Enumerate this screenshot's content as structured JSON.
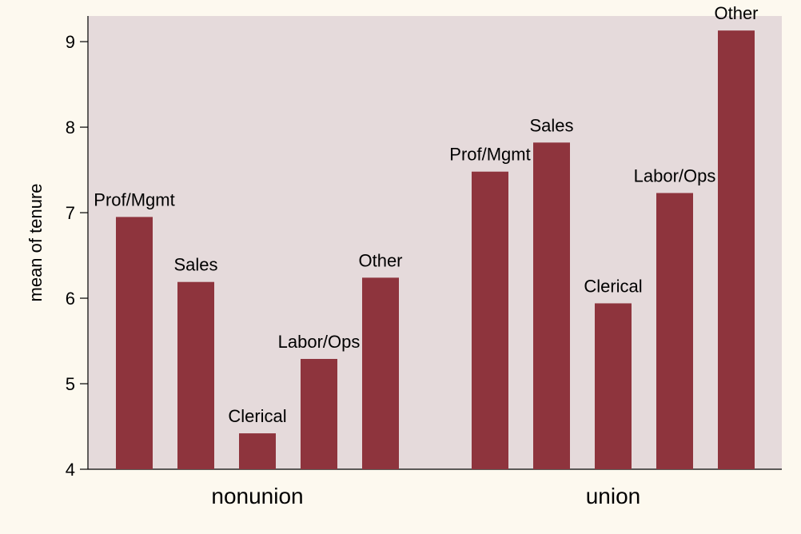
{
  "chart_data": {
    "type": "bar",
    "title": "",
    "xlabel": "",
    "ylabel": "mean of tenure",
    "ylim": [
      4,
      9.3
    ],
    "yticks": [
      4,
      5,
      6,
      7,
      8,
      9
    ],
    "grid": false,
    "legend": "none",
    "groups": [
      {
        "name": "nonunion",
        "bars": [
          {
            "label": "Prof/Mgmt",
            "value": 6.95
          },
          {
            "label": "Sales",
            "value": 6.19
          },
          {
            "label": "Clerical",
            "value": 4.42
          },
          {
            "label": "Labor/Ops",
            "value": 5.29
          },
          {
            "label": "Other",
            "value": 6.24
          }
        ]
      },
      {
        "name": "union",
        "bars": [
          {
            "label": "Prof/Mgmt",
            "value": 7.48
          },
          {
            "label": "Sales",
            "value": 7.82
          },
          {
            "label": "Clerical",
            "value": 5.94
          },
          {
            "label": "Labor/Ops",
            "value": 7.23
          },
          {
            "label": "Other",
            "value": 9.13
          }
        ]
      }
    ]
  },
  "colors": {
    "page_background": "#fdf9ef",
    "plot_background": "#e5dadb",
    "bar": "#8e343d",
    "axis": "#000000"
  }
}
